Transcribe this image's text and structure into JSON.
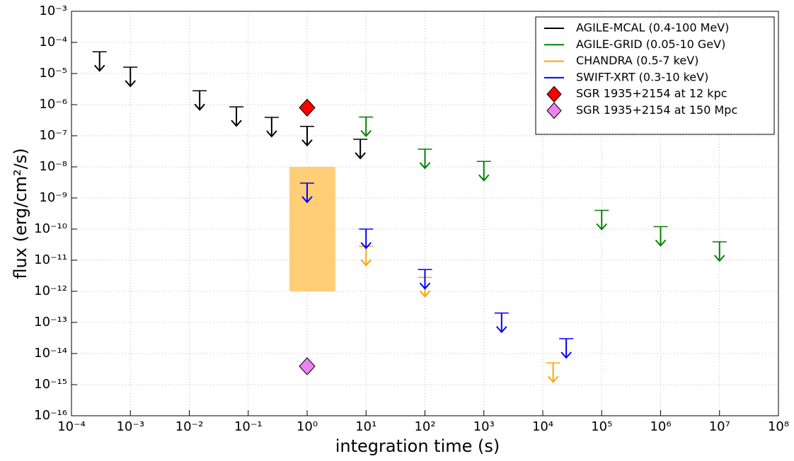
{
  "chart_data": {
    "type": "scatter",
    "x_label": "integration time (s)",
    "y_label": "flux (erg/cm²/s)",
    "log_x": true,
    "log_y": true,
    "grid": true,
    "legend": "upper right",
    "xlim": [
      0.0001,
      100000000
    ],
    "ylim": [
      1e-16,
      0.001
    ],
    "xticks": [
      {
        "value": 0.0001,
        "label": "10⁻⁴"
      },
      {
        "value": 0.001,
        "label": "10⁻³"
      },
      {
        "value": 0.01,
        "label": "10⁻²"
      },
      {
        "value": 0.1,
        "label": "10⁻¹"
      },
      {
        "value": 1,
        "label": "10⁰"
      },
      {
        "value": 10,
        "label": "10¹"
      },
      {
        "value": 100,
        "label": "10²"
      },
      {
        "value": 1000,
        "label": "10³"
      },
      {
        "value": 10000,
        "label": "10⁴"
      },
      {
        "value": 100000,
        "label": "10⁵"
      },
      {
        "value": 1000000,
        "label": "10⁶"
      },
      {
        "value": 10000000,
        "label": "10⁷"
      },
      {
        "value": 100000000,
        "label": "10⁸"
      }
    ],
    "yticks": [
      {
        "value": 1e-16,
        "label": "10⁻¹⁶"
      },
      {
        "value": 1e-15,
        "label": "10⁻¹⁵"
      },
      {
        "value": 1e-14,
        "label": "10⁻¹⁴"
      },
      {
        "value": 1e-13,
        "label": "10⁻¹³"
      },
      {
        "value": 1e-12,
        "label": "10⁻¹²"
      },
      {
        "value": 1e-11,
        "label": "10⁻¹¹"
      },
      {
        "value": 1e-10,
        "label": "10⁻¹⁰"
      },
      {
        "value": 1e-09,
        "label": "10⁻⁹"
      },
      {
        "value": 1e-08,
        "label": "10⁻⁸"
      },
      {
        "value": 1e-07,
        "label": "10⁻⁷"
      },
      {
        "value": 1e-06,
        "label": "10⁻⁶"
      },
      {
        "value": 1e-05,
        "label": "10⁻⁵"
      },
      {
        "value": 0.0001,
        "label": "10⁻⁴"
      },
      {
        "value": 0.001,
        "label": "10⁻³"
      }
    ],
    "series": [
      {
        "name": "AGILE-MCAL (0.4-100 MeV)",
        "color": "#000000",
        "marker": "upper-limit",
        "x": [
          0.0003,
          0.001,
          0.015,
          0.063,
          0.25,
          1,
          8
        ],
        "values": [
          5e-05,
          1.6e-05,
          2.8e-06,
          8.5e-07,
          3.9e-07,
          2e-07,
          7.7e-08
        ]
      },
      {
        "name": "AGILE-GRID (0.05-10 GeV)",
        "color": "#008000",
        "marker": "upper-limit",
        "x": [
          10,
          100,
          1000,
          100000,
          1000000,
          10000000
        ],
        "values": [
          4e-07,
          3.7e-08,
          1.5e-08,
          4e-10,
          1.2e-10,
          3.9e-11
        ]
      },
      {
        "name": "CHANDRA (0.5-7 keV)",
        "color": "#ffa500",
        "marker": "upper-limit",
        "x": [
          10,
          100,
          15000
        ],
        "values": [
          2.8e-11,
          2.8e-12,
          5e-15
        ]
      },
      {
        "name": "SWIFT-XRT (0.3-10 keV)",
        "color": "#0000ff",
        "marker": "upper-limit",
        "x": [
          1,
          10,
          100,
          2000,
          25000
        ],
        "values": [
          3e-09,
          1e-10,
          5e-12,
          2e-13,
          3e-14
        ]
      },
      {
        "name": "SGR 1935+2154 at 12 kpc",
        "color": "#ff0000",
        "marker": "diamond",
        "x": [
          1
        ],
        "values": [
          8e-07
        ]
      },
      {
        "name": "SGR 1935+2154 at 150 Mpc",
        "color": "#ee82ee",
        "marker": "diamond",
        "x": [
          1
        ],
        "values": [
          3.9e-15
        ]
      }
    ],
    "shaded_region": {
      "x": [
        0.5,
        3
      ],
      "y": [
        1e-12,
        1e-08
      ],
      "color": "#ffc966"
    }
  }
}
